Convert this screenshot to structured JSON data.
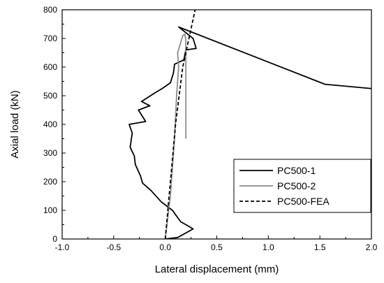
{
  "chart_data": {
    "type": "line",
    "xlabel": "Lateral displacement (mm)",
    "ylabel": "Axial load (kN)",
    "xlim": [
      -1.0,
      2.0
    ],
    "ylim": [
      0,
      800
    ],
    "x_ticks": [
      "-1.0",
      "-0.5",
      "0.0",
      "0.5",
      "1.0",
      "1.5",
      "2.0"
    ],
    "y_ticks": [
      "0",
      "100",
      "200",
      "300",
      "400",
      "500",
      "600",
      "700",
      "800"
    ],
    "grid": false,
    "legend_position": "bottom-right",
    "series": [
      {
        "name": "PC500-1",
        "color": "#000000",
        "dash": "solid",
        "points": [
          [
            0.0,
            0
          ],
          [
            0.12,
            5
          ],
          [
            0.27,
            35
          ],
          [
            0.2,
            50
          ],
          [
            0.15,
            60
          ],
          [
            0.11,
            80
          ],
          [
            0.07,
            100
          ],
          [
            -0.04,
            130
          ],
          [
            -0.14,
            170
          ],
          [
            -0.22,
            195
          ],
          [
            -0.24,
            220
          ],
          [
            -0.29,
            260
          ],
          [
            -0.3,
            290
          ],
          [
            -0.34,
            320
          ],
          [
            -0.32,
            370
          ],
          [
            -0.35,
            400
          ],
          [
            -0.19,
            410
          ],
          [
            -0.26,
            450
          ],
          [
            -0.15,
            465
          ],
          [
            -0.23,
            480
          ],
          [
            -0.1,
            510
          ],
          [
            -0.03,
            525
          ],
          [
            0.05,
            545
          ],
          [
            0.08,
            580
          ],
          [
            0.09,
            610
          ],
          [
            0.18,
            625
          ],
          [
            0.2,
            660
          ],
          [
            0.3,
            665
          ],
          [
            0.27,
            700
          ],
          [
            0.13,
            740
          ],
          [
            1.55,
            540
          ],
          [
            2.0,
            525
          ]
        ]
      },
      {
        "name": "PC500-2",
        "color": "#8c8c8c",
        "dash": "solid",
        "points": [
          [
            0.0,
            0
          ],
          [
            0.05,
            150
          ],
          [
            0.09,
            350
          ],
          [
            0.11,
            500
          ],
          [
            0.13,
            600
          ],
          [
            0.12,
            650
          ],
          [
            0.17,
            710
          ],
          [
            0.19,
            715
          ],
          [
            0.2,
            695
          ],
          [
            0.2,
            350
          ]
        ]
      },
      {
        "name": "PC500-FEA",
        "color": "#000000",
        "dash": "dashed",
        "points": [
          [
            0.0,
            0
          ],
          [
            0.05,
            200
          ],
          [
            0.1,
            400
          ],
          [
            0.17,
            600
          ],
          [
            0.23,
            700
          ],
          [
            0.29,
            800
          ]
        ]
      }
    ]
  }
}
